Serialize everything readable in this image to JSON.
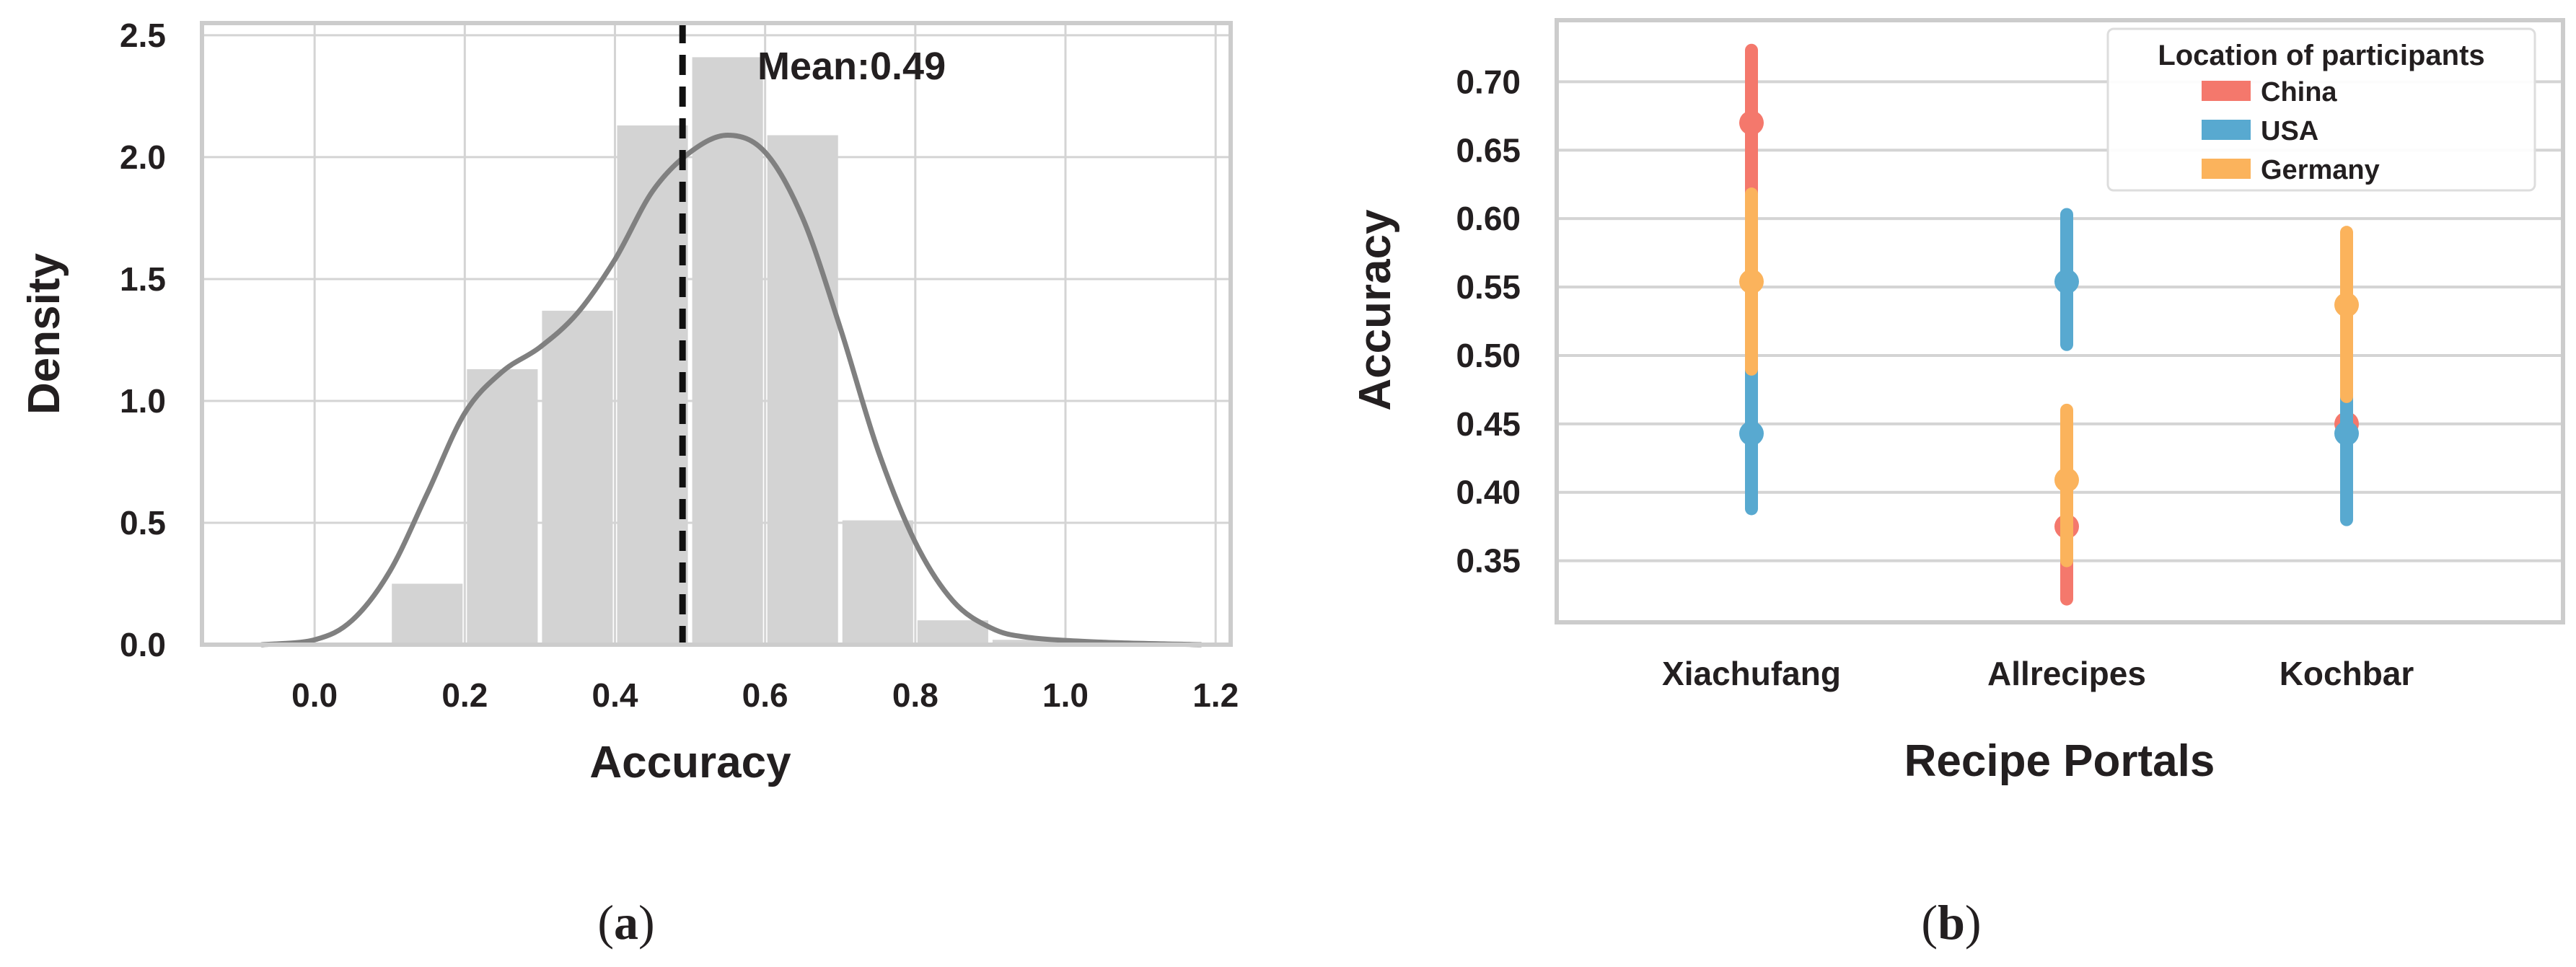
{
  "panels": [
    {
      "label_open": "(",
      "label_letter": "a",
      "label_close": ")"
    },
    {
      "label_open": "(",
      "label_letter": "b",
      "label_close": ")"
    }
  ],
  "chart_data": [
    {
      "type": "bar",
      "subtype": "histogram-with-density",
      "xlabel": "Accuracy",
      "ylabel": "Density",
      "xlim": [
        -0.15,
        1.22
      ],
      "ylim": [
        0,
        2.55
      ],
      "xticks": [
        "0.0",
        "0.2",
        "0.4",
        "0.6",
        "0.8",
        "1.0",
        "1.2"
      ],
      "yticks": [
        "0.0",
        "0.5",
        "1.0",
        "1.5",
        "2.0",
        "2.5"
      ],
      "grid": true,
      "bin_edges": [
        0.1,
        0.2,
        0.3,
        0.4,
        0.5,
        0.6,
        0.7,
        0.8,
        0.9,
        1.0
      ],
      "values": [
        0.25,
        1.13,
        1.37,
        2.13,
        2.41,
        2.09,
        0.51,
        0.1,
        0.02
      ],
      "bar_color": "#d3d3d3",
      "density_curve": {
        "color": "#808080",
        "points": [
          [
            -0.07,
            0.0
          ],
          [
            0.0,
            0.02
          ],
          [
            0.05,
            0.1
          ],
          [
            0.1,
            0.3
          ],
          [
            0.15,
            0.62
          ],
          [
            0.2,
            0.95
          ],
          [
            0.25,
            1.12
          ],
          [
            0.3,
            1.22
          ],
          [
            0.35,
            1.36
          ],
          [
            0.4,
            1.58
          ],
          [
            0.45,
            1.86
          ],
          [
            0.5,
            2.02
          ],
          [
            0.55,
            2.09
          ],
          [
            0.6,
            2.02
          ],
          [
            0.65,
            1.75
          ],
          [
            0.7,
            1.3
          ],
          [
            0.75,
            0.8
          ],
          [
            0.8,
            0.42
          ],
          [
            0.85,
            0.18
          ],
          [
            0.9,
            0.07
          ],
          [
            0.95,
            0.03
          ],
          [
            1.05,
            0.01
          ],
          [
            1.18,
            0.0
          ]
        ]
      },
      "mean": {
        "value": 0.49,
        "label": "Mean:0.49",
        "style": "dashed",
        "color": "#111111"
      }
    },
    {
      "type": "scatter",
      "subtype": "point-with-error-bars",
      "xlabel": "Recipe Portals",
      "ylabel": "Accuracy",
      "categories": [
        "Xiachufang",
        "Allrecipes",
        "Kochbar"
      ],
      "ylim": [
        0.305,
        0.745
      ],
      "yticks": [
        "0.35",
        "0.40",
        "0.45",
        "0.50",
        "0.55",
        "0.60",
        "0.65",
        "0.70"
      ],
      "grid": true,
      "legend": {
        "title": "Location of participants",
        "placement": "top-right"
      },
      "series": [
        {
          "name": "China",
          "color": "#f4786c",
          "points": [
            {
              "category": "Xiachufang",
              "value": 0.67,
              "low": 0.615,
              "high": 0.723
            },
            {
              "category": "Allrecipes",
              "value": 0.375,
              "low": 0.322,
              "high": 0.43
            },
            {
              "category": "Kochbar",
              "value": 0.45,
              "low": 0.415,
              "high": 0.49
            }
          ]
        },
        {
          "name": "USA",
          "color": "#58a9d0",
          "points": [
            {
              "category": "Xiachufang",
              "value": 0.443,
              "low": 0.388,
              "high": 0.49
            },
            {
              "category": "Allrecipes",
              "value": 0.554,
              "low": 0.508,
              "high": 0.603
            },
            {
              "category": "Kochbar",
              "value": 0.443,
              "low": 0.38,
              "high": 0.473
            }
          ]
        },
        {
          "name": "Germany",
          "color": "#fbb35c",
          "points": [
            {
              "category": "Xiachufang",
              "value": 0.554,
              "low": 0.49,
              "high": 0.618
            },
            {
              "category": "Allrecipes",
              "value": 0.409,
              "low": 0.35,
              "high": 0.46
            },
            {
              "category": "Kochbar",
              "value": 0.537,
              "low": 0.47,
              "high": 0.59
            }
          ]
        }
      ]
    }
  ]
}
